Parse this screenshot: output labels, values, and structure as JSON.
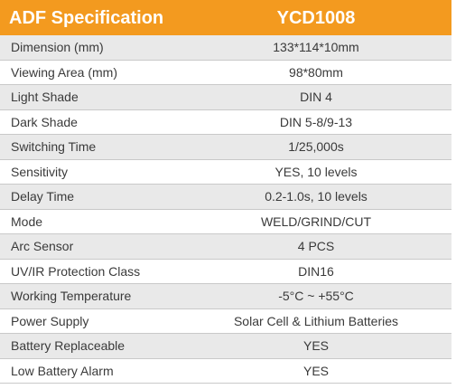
{
  "header": {
    "title": "ADF Specification",
    "model": "YCD1008"
  },
  "table": {
    "rows": [
      [
        "Dimension (mm)",
        "133*114*10mm"
      ],
      [
        "Viewing Area (mm)",
        "98*80mm"
      ],
      [
        "Light Shade",
        "DIN 4"
      ],
      [
        "Dark Shade",
        "DIN 5-8/9-13"
      ],
      [
        "Switching Time",
        "1/25,000s"
      ],
      [
        "Sensitivity",
        "YES, 10 levels"
      ],
      [
        "Delay Time",
        "0.2-1.0s, 10 levels"
      ],
      [
        "Mode",
        "WELD/GRIND/CUT"
      ],
      [
        "Arc Sensor",
        "4 PCS"
      ],
      [
        "UV/IR Protection Class",
        "DIN16"
      ],
      [
        "Working Temperature",
        "-5°C ~ +55°C"
      ],
      [
        "Power Supply",
        "Solar Cell & Lithium Batteries"
      ],
      [
        "Battery Replaceable",
        "YES"
      ],
      [
        "Low Battery Alarm",
        "YES"
      ]
    ]
  }
}
